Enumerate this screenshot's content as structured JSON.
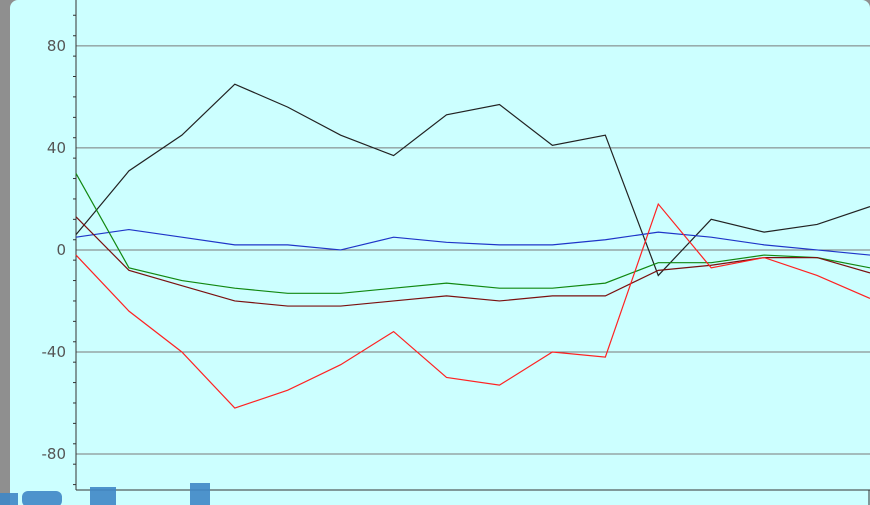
{
  "chart_data": {
    "type": "line",
    "title": "",
    "xlabel": "",
    "ylabel": "",
    "ylim": [
      -100,
      98
    ],
    "xlim": [
      0,
      15
    ],
    "grid": true,
    "yticks": [
      80,
      40,
      0,
      -40,
      -80
    ],
    "ytick_labels": [
      "80",
      "40",
      "0",
      "-40",
      "-80"
    ],
    "x": [
      0,
      1,
      2,
      3,
      4,
      5,
      6,
      7,
      8,
      9,
      10,
      11,
      12,
      13,
      14,
      15
    ],
    "series": [
      {
        "color": "#222222",
        "values": [
          6,
          31,
          45,
          65,
          56,
          45,
          37,
          53,
          57,
          41,
          45,
          -10,
          12,
          7,
          10,
          17
        ]
      },
      {
        "color": "#1f35c8",
        "values": [
          5,
          8,
          5,
          2,
          2,
          0,
          5,
          3,
          2,
          2,
          4,
          7,
          5,
          2,
          0,
          -2
        ]
      },
      {
        "color": "#118811",
        "values": [
          30,
          -7,
          -12,
          -15,
          -17,
          -17,
          -15,
          -13,
          -15,
          -15,
          -13,
          -5,
          -5,
          -2,
          -3,
          -7
        ]
      },
      {
        "color": "#7a1010",
        "values": [
          13,
          -8,
          -14,
          -20,
          -22,
          -22,
          -20,
          -18,
          -20,
          -18,
          -18,
          -8,
          -6,
          -3,
          -3,
          -9
        ]
      },
      {
        "color": "#ff2222",
        "values": [
          -2,
          -24,
          -40,
          -62,
          -55,
          -45,
          -32,
          -50,
          -53,
          -40,
          -42,
          18,
          -7,
          -3,
          -10,
          -19
        ]
      }
    ]
  }
}
